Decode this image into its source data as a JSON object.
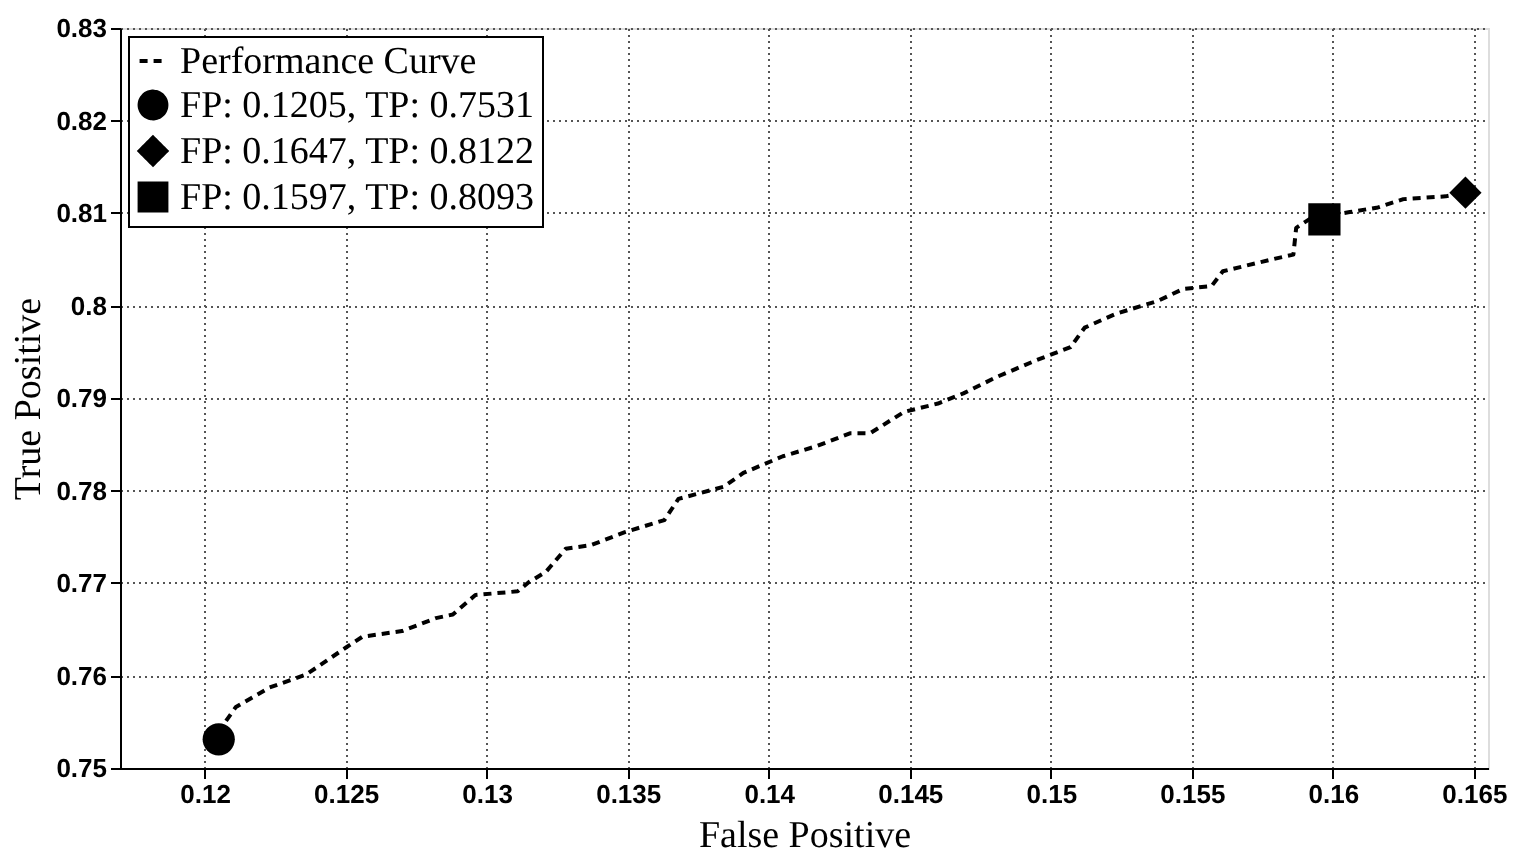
{
  "chart_data": {
    "type": "line",
    "xlabel": "False Positive",
    "ylabel": "True Positive",
    "xlim": [
      0.117,
      0.1655
    ],
    "ylim": [
      0.75,
      0.83
    ],
    "xticks": [
      0.12,
      0.125,
      0.13,
      0.135,
      0.14,
      0.145,
      0.15,
      0.155,
      0.16,
      0.165
    ],
    "yticks": [
      0.75,
      0.76,
      0.77,
      0.78,
      0.79,
      0.8,
      0.81,
      0.82,
      0.83
    ],
    "grid": true,
    "legend": "top left",
    "series": [
      {
        "name": "Performance Curve",
        "color": "#000000",
        "line_style": "dashed",
        "marker": "none",
        "x": [
          0.12076,
          0.12111,
          0.1223,
          0.1236,
          0.125,
          0.1256,
          0.127,
          0.1282,
          0.1288,
          0.1296,
          0.1311,
          0.1315,
          0.1321,
          0.1328,
          0.1337,
          0.1349,
          0.1363,
          0.1368,
          0.1384,
          0.1391,
          0.1405,
          0.1417,
          0.1429,
          0.1436,
          0.1448,
          0.146,
          0.1469,
          0.1481,
          0.1495,
          0.1507,
          0.1512,
          0.1523,
          0.1538,
          0.1547,
          0.1557,
          0.1561,
          0.158,
          0.1586,
          0.1587,
          0.1592,
          0.1606,
          0.1616,
          0.1625,
          0.164,
          0.1647
        ],
        "values": [
          0.7551,
          0.7566,
          0.7587,
          0.7601,
          0.763,
          0.7642,
          0.7648,
          0.7662,
          0.7666,
          0.7687,
          0.7691,
          0.7701,
          0.7712,
          0.7737,
          0.7741,
          0.7755,
          0.7768,
          0.7791,
          0.7804,
          0.7819,
          0.7837,
          0.7848,
          0.7862,
          0.7862,
          0.7885,
          0.7894,
          0.7905,
          0.7923,
          0.7941,
          0.7955,
          0.7976,
          0.7991,
          0.8005,
          0.8018,
          0.8021,
          0.8037,
          0.8051,
          0.8055,
          0.8084,
          0.8094,
          0.8101,
          0.8106,
          0.8115,
          0.8118,
          0.8122
        ]
      },
      {
        "name": "FP: 0.1205, TP: 0.7531",
        "type": "scatter",
        "color": "#000000",
        "marker": "circle",
        "x": [
          0.1205
        ],
        "values": [
          0.7531
        ]
      },
      {
        "name": "FP: 0.1647, TP: 0.8122",
        "type": "scatter",
        "color": "#000000",
        "marker": "diamond",
        "x": [
          0.1647
        ],
        "values": [
          0.8122
        ]
      },
      {
        "name": "FP: 0.1597, TP: 0.8093",
        "type": "scatter",
        "color": "#000000",
        "marker": "square",
        "x": [
          0.1597
        ],
        "values": [
          0.8093
        ]
      }
    ]
  }
}
